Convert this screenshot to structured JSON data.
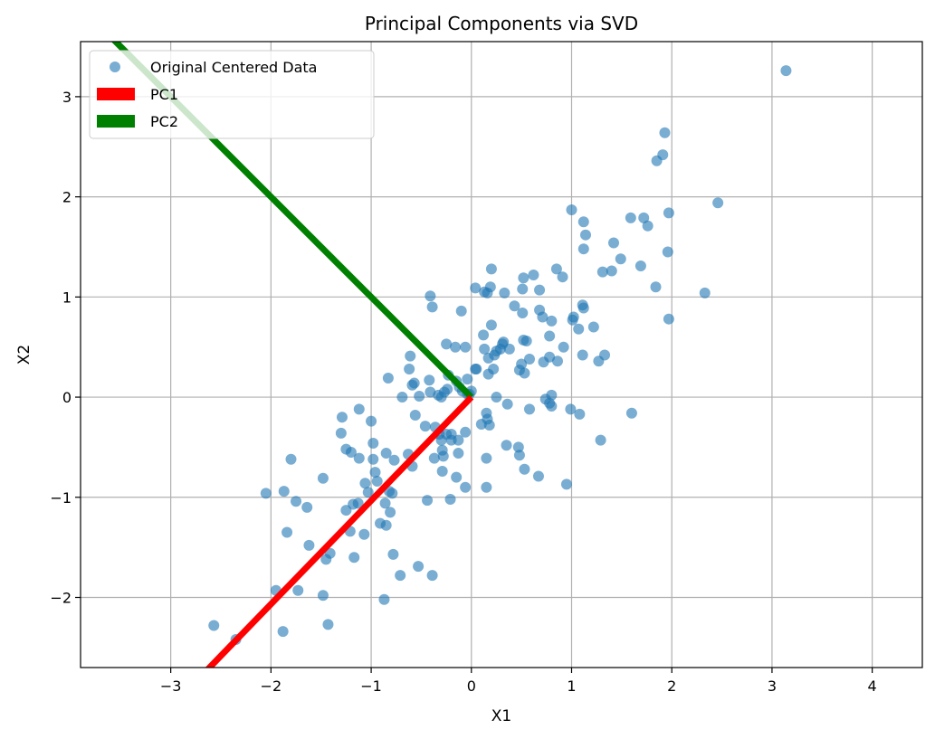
{
  "chart_data": {
    "type": "scatter",
    "title": "Principal Components via SVD",
    "xlabel": "X1",
    "ylabel": "X2",
    "xlim": [
      -3.9,
      4.5
    ],
    "ylim": [
      -2.7,
      3.55
    ],
    "xticks": [
      -3,
      -2,
      -1,
      0,
      1,
      2,
      3,
      4
    ],
    "yticks": [
      -2,
      -1,
      0,
      1,
      2,
      3
    ],
    "xtick_labels": [
      "−3",
      "−2",
      "−1",
      "0",
      "1",
      "2",
      "3",
      "4"
    ],
    "ytick_labels": [
      "−2",
      "−1",
      "0",
      "1",
      "2",
      "3"
    ],
    "grid": true,
    "legend_position": "top-left",
    "colors": {
      "points": "#1f77b4",
      "pc1": "#ff0000",
      "pc2": "#008000"
    },
    "series": [
      {
        "name": "Original Centered Data",
        "kind": "scatter",
        "points": [
          [
            -2.57,
            -2.28
          ],
          [
            -2.35,
            -2.42
          ],
          [
            -1.88,
            -2.34
          ],
          [
            -1.95,
            -1.93
          ],
          [
            -1.73,
            -1.93
          ],
          [
            -1.84,
            -1.35
          ],
          [
            -1.62,
            -1.48
          ],
          [
            -1.48,
            -1.98
          ],
          [
            -1.43,
            -2.27
          ],
          [
            -1.45,
            -1.62
          ],
          [
            -1.41,
            -1.56
          ],
          [
            -1.17,
            -1.6
          ],
          [
            -1.07,
            -1.37
          ],
          [
            -1.21,
            -1.34
          ],
          [
            -0.87,
            -2.02
          ],
          [
            -0.85,
            -1.28
          ],
          [
            -0.78,
            -1.57
          ],
          [
            -0.71,
            -1.78
          ],
          [
            -0.53,
            -1.69
          ],
          [
            -0.39,
            -1.78
          ],
          [
            -2.05,
            -0.96
          ],
          [
            -1.87,
            -0.94
          ],
          [
            -1.75,
            -1.04
          ],
          [
            -1.64,
            -1.1
          ],
          [
            -1.8,
            -0.62
          ],
          [
            -1.48,
            -0.81
          ],
          [
            -1.29,
            -0.2
          ],
          [
            -1.3,
            -0.36
          ],
          [
            -1.25,
            -0.52
          ],
          [
            -1.2,
            -0.55
          ],
          [
            -1.12,
            -0.12
          ],
          [
            -1.12,
            -0.61
          ],
          [
            -1.06,
            -0.86
          ],
          [
            -1.0,
            -0.24
          ],
          [
            -0.98,
            -0.46
          ],
          [
            -0.98,
            -0.62
          ],
          [
            -1.03,
            -0.95
          ],
          [
            -0.96,
            -0.75
          ],
          [
            -0.94,
            -0.84
          ],
          [
            -1.13,
            -1.06
          ],
          [
            -1.18,
            -1.07
          ],
          [
            -1.25,
            -1.13
          ],
          [
            -0.91,
            -1.26
          ],
          [
            -0.86,
            -1.06
          ],
          [
            -0.82,
            -0.94
          ],
          [
            -0.79,
            -0.96
          ],
          [
            -0.81,
            -1.15
          ],
          [
            -0.85,
            -0.56
          ],
          [
            -0.77,
            -0.63
          ],
          [
            -0.63,
            -0.57
          ],
          [
            -0.59,
            -0.69
          ],
          [
            -0.83,
            0.19
          ],
          [
            -0.69,
            -0.0
          ],
          [
            -0.62,
            0.28
          ],
          [
            -0.61,
            0.41
          ],
          [
            -0.56,
            -0.18
          ],
          [
            -0.46,
            -0.29
          ],
          [
            -0.44,
            -1.03
          ],
          [
            -0.37,
            -0.61
          ],
          [
            -0.32,
            -0.37
          ],
          [
            -0.36,
            -0.3
          ],
          [
            -0.41,
            0.05
          ],
          [
            -0.33,
            0.02
          ],
          [
            -0.3,
            -0.43
          ],
          [
            -0.29,
            -0.53
          ],
          [
            -0.28,
            -0.59
          ],
          [
            -0.29,
            -0.74
          ],
          [
            -0.21,
            -1.02
          ],
          [
            -0.25,
            0.53
          ],
          [
            -0.16,
            0.5
          ],
          [
            -0.06,
            0.5
          ],
          [
            -0.1,
            0.86
          ],
          [
            -0.41,
            1.01
          ],
          [
            -0.39,
            0.9
          ],
          [
            -0.42,
            0.17
          ],
          [
            -0.52,
            0.01
          ],
          [
            -0.59,
            0.12
          ],
          [
            -0.57,
            0.14
          ],
          [
            -0.23,
            0.22
          ],
          [
            -0.15,
            0.16
          ],
          [
            -0.12,
            0.1
          ],
          [
            -0.09,
            0.06
          ],
          [
            -0.04,
            0.03
          ],
          [
            -0.02,
            0.03
          ],
          [
            0.0,
            0.06
          ],
          [
            0.04,
            0.28
          ],
          [
            0.05,
            0.28
          ],
          [
            -0.04,
            0.18
          ],
          [
            -0.06,
            -0.35
          ],
          [
            -0.13,
            -0.43
          ],
          [
            -0.15,
            -0.8
          ],
          [
            -0.13,
            -0.56
          ],
          [
            -0.06,
            -0.9
          ],
          [
            -0.2,
            -0.43
          ],
          [
            -0.2,
            -0.37
          ],
          [
            -0.25,
            -0.37
          ],
          [
            -0.24,
            0.08
          ],
          [
            -0.3,
            0.0
          ],
          [
            -0.27,
            0.05
          ],
          [
            0.04,
            1.09
          ],
          [
            0.13,
            1.05
          ],
          [
            0.16,
            1.04
          ],
          [
            0.19,
            1.1
          ],
          [
            0.2,
            1.28
          ],
          [
            0.33,
            1.04
          ],
          [
            0.12,
            0.62
          ],
          [
            0.13,
            0.48
          ],
          [
            0.17,
            0.39
          ],
          [
            0.2,
            0.72
          ],
          [
            0.17,
            0.23
          ],
          [
            0.22,
            0.28
          ],
          [
            0.23,
            0.42
          ],
          [
            0.25,
            0.46
          ],
          [
            0.29,
            0.48
          ],
          [
            0.31,
            0.53
          ],
          [
            0.32,
            0.55
          ],
          [
            0.38,
            0.48
          ],
          [
            0.43,
            0.91
          ],
          [
            0.48,
            0.27
          ],
          [
            0.5,
            0.33
          ],
          [
            0.51,
            0.84
          ],
          [
            0.52,
            0.57
          ],
          [
            0.53,
            0.24
          ],
          [
            0.55,
            0.56
          ],
          [
            0.51,
            1.08
          ],
          [
            0.52,
            1.19
          ],
          [
            0.62,
            1.22
          ],
          [
            0.68,
            1.07
          ],
          [
            0.68,
            0.87
          ],
          [
            0.71,
            0.8
          ],
          [
            0.8,
            0.76
          ],
          [
            0.85,
            1.28
          ],
          [
            0.91,
            1.2
          ],
          [
            0.72,
            0.35
          ],
          [
            0.78,
            0.4
          ],
          [
            0.86,
            0.36
          ],
          [
            0.92,
            0.5
          ],
          [
            0.78,
            0.61
          ],
          [
            0.58,
            0.38
          ],
          [
            0.36,
            -0.07
          ],
          [
            0.25,
            0.0
          ],
          [
            0.1,
            -0.27
          ],
          [
            0.15,
            -0.16
          ],
          [
            0.16,
            -0.22
          ],
          [
            0.18,
            -0.28
          ],
          [
            0.15,
            -0.61
          ],
          [
            0.15,
            -0.9
          ],
          [
            0.35,
            -0.48
          ],
          [
            0.47,
            -0.5
          ],
          [
            0.48,
            -0.58
          ],
          [
            0.53,
            -0.72
          ],
          [
            0.58,
            -0.12
          ],
          [
            0.67,
            -0.79
          ],
          [
            0.74,
            -0.02
          ],
          [
            0.78,
            -0.06
          ],
          [
            0.8,
            0.02
          ],
          [
            0.8,
            -0.09
          ],
          [
            0.95,
            -0.87
          ],
          [
            0.99,
            -0.12
          ],
          [
            1.08,
            -0.17
          ],
          [
            1.02,
            0.8
          ],
          [
            1.01,
            0.77
          ],
          [
            1.07,
            0.68
          ],
          [
            1.11,
            0.92
          ],
          [
            1.12,
            0.89
          ],
          [
            1.11,
            0.42
          ],
          [
            1.22,
            0.7
          ],
          [
            1.27,
            0.36
          ],
          [
            1.29,
            -0.43
          ],
          [
            1.33,
            0.42
          ],
          [
            1.31,
            1.25
          ],
          [
            1.4,
            1.26
          ],
          [
            1.42,
            1.54
          ],
          [
            1.49,
            1.38
          ],
          [
            1.12,
            1.48
          ],
          [
            1.12,
            1.75
          ],
          [
            1.14,
            1.62
          ],
          [
            1.0,
            1.87
          ],
          [
            1.59,
            1.79
          ],
          [
            1.6,
            -0.16
          ],
          [
            1.69,
            1.31
          ],
          [
            1.72,
            1.79
          ],
          [
            1.76,
            1.71
          ],
          [
            1.84,
            1.1
          ],
          [
            1.85,
            2.36
          ],
          [
            1.91,
            2.42
          ],
          [
            1.93,
            2.64
          ],
          [
            1.96,
            1.45
          ],
          [
            1.97,
            1.84
          ],
          [
            1.97,
            0.78
          ],
          [
            2.33,
            1.04
          ],
          [
            2.46,
            1.94
          ],
          [
            3.14,
            3.26
          ]
        ]
      },
      {
        "name": "PC1",
        "kind": "line",
        "points": [
          [
            0,
            0
          ],
          [
            -3.0,
            -3.1
          ]
        ]
      },
      {
        "name": "PC2",
        "kind": "line",
        "points": [
          [
            0,
            0
          ],
          [
            -4.0,
            4.0
          ]
        ]
      }
    ]
  }
}
